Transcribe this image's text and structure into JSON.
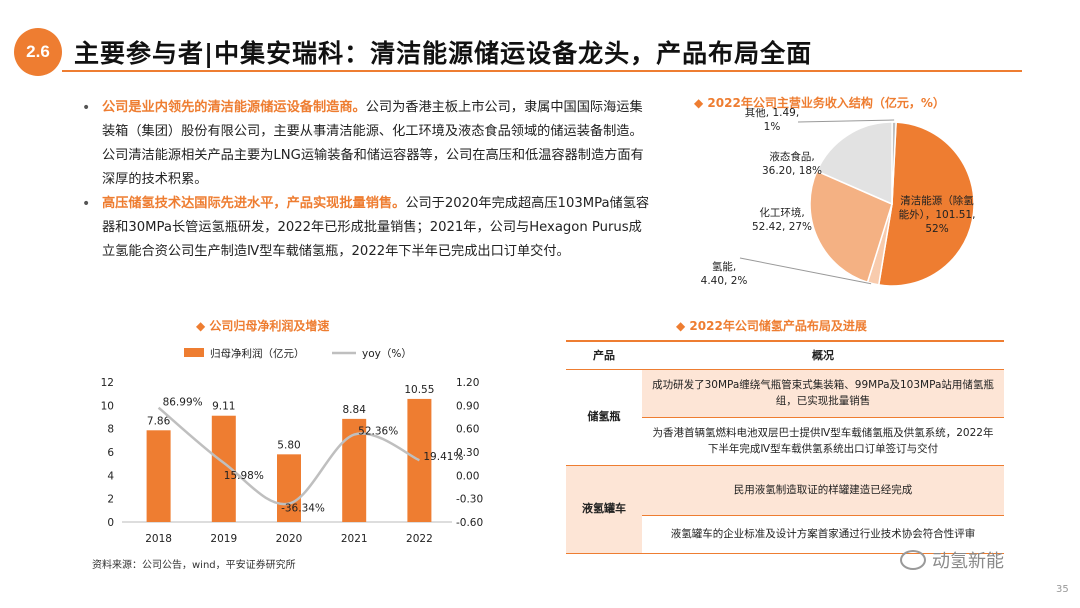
{
  "header": {
    "section": "2.6",
    "title": "主要参与者|中集安瑞科：清洁能源储运设备龙头，产品布局全面"
  },
  "bullets": [
    {
      "highlight": "公司是业内领先的清洁能源储运设备制造商。",
      "text": "公司为香港主板上市公司，隶属中国国际海运集装箱（集团）股份有限公司，主要从事清洁能源、化工环境及液态食品领域的储运装备制造。公司清洁能源相关产品主要为LNG运输装备和储运容器等，公司在高压和低温容器制造方面有深厚的技术积累。"
    },
    {
      "highlight": "高压储氢技术达国际先进水平，产品实现批量销售。",
      "text": "公司于2020年完成超高压103MPa储氢容器和30MPa长管运氢瓶研发，2022年已形成批量销售；2021年，公司与Hexagon Purus成立氢能合资公司生产制造Ⅳ型车载储氢瓶，2022年下半年已完成出口订单交付。"
    }
  ],
  "pie_title": "2022年公司主营业务收入结构（亿元，%）",
  "bar_title": "公司归母净利润及增速",
  "table_title": "2022年公司储氢产品布局及进展",
  "source": "资料来源：公司公告，wind，平安证券研究所",
  "watermark": "动氢新能",
  "page_number": "35",
  "colors": {
    "accent": "#ee7d31",
    "light_accent": "#f4b183",
    "gray": "#d9d9d9",
    "light_gray": "#eeeeee",
    "table_shade": "#fde5d6"
  },
  "icons": {
    "bullet": "bullet-dot-icon",
    "legend_diamond": "diamond-icon"
  },
  "table": {
    "headers": [
      "产品",
      "概况"
    ],
    "groups": [
      {
        "category": "储氢瓶",
        "rows": [
          {
            "text": "成功研发了30MPa缠绕气瓶管束式集装箱、99MPa及103MPa站用储氢瓶组，已实现批量销售",
            "shaded": true
          },
          {
            "text": "为香港首辆氢燃料电池双层巴士提供Ⅳ型车载储氢瓶及供氢系统，2022年下半年完成Ⅳ型车载供氢系统出口订单签订与交付",
            "shaded": false
          }
        ]
      },
      {
        "category": "液氢罐车",
        "rows": [
          {
            "text": "民用液氢制造取证的样罐建造已经完成",
            "shaded": true
          },
          {
            "text": "液氢罐车的企业标准及设计方案首家通过行业技术协会符合性评审",
            "shaded": false
          }
        ]
      }
    ]
  },
  "chart_data": [
    {
      "type": "pie",
      "title": "2022年公司主营业务收入结构（亿元，%）",
      "slices": [
        {
          "name": "清洁能源（除氢能外）",
          "value": 101.51,
          "percent": 52,
          "color": "#ee7d31",
          "label": [
            "清洁能源（除氢",
            "能外），101.51,",
            "52%"
          ]
        },
        {
          "name": "氢能",
          "value": 4.4,
          "percent": 2,
          "color": "#f8cbad",
          "label": [
            "氢能,",
            "4.40, 2%"
          ]
        },
        {
          "name": "化工环境",
          "value": 52.42,
          "percent": 27,
          "color": "#f4b183",
          "label": [
            "化工环境,",
            "52.42, 27%"
          ]
        },
        {
          "name": "液态食品",
          "value": 36.2,
          "percent": 18,
          "color": "#e2e2e2",
          "label": [
            "液态食品,",
            "36.20, 18%"
          ]
        },
        {
          "name": "其他",
          "value": 1.49,
          "percent": 1,
          "color": "#bfbfbf",
          "label": [
            "其他, 1.49,",
            "1%"
          ]
        }
      ]
    },
    {
      "type": "bar",
      "categories": [
        "2018",
        "2019",
        "2020",
        "2021",
        "2022"
      ],
      "series": [
        {
          "name": "归母净利润（亿元）",
          "kind": "bar",
          "axis": "left",
          "color": "#ee7d31",
          "values": [
            7.86,
            9.11,
            5.8,
            8.84,
            10.55
          ],
          "labels": [
            "7.86",
            "9.11",
            "5.80",
            "8.84",
            "10.55"
          ]
        },
        {
          "name": "yoy（%）",
          "kind": "line",
          "axis": "right",
          "color": "#bfbfbf",
          "values": [
            0.8699,
            0.1598,
            -0.3634,
            0.5236,
            0.1941
          ],
          "labels": [
            "86.99%",
            "15.98%",
            "-36.34%",
            "52.36%",
            "19.41%"
          ]
        }
      ],
      "y_left": {
        "min": 0,
        "max": 12,
        "ticks": [
          "0",
          "2",
          "4",
          "6",
          "8",
          "10",
          "12"
        ]
      },
      "y_right": {
        "min": -0.6,
        "max": 1.2,
        "ticks": [
          "-0.60",
          "-0.30",
          "0.00",
          "0.30",
          "0.60",
          "0.90",
          "1.20"
        ]
      },
      "legend": "top"
    }
  ]
}
